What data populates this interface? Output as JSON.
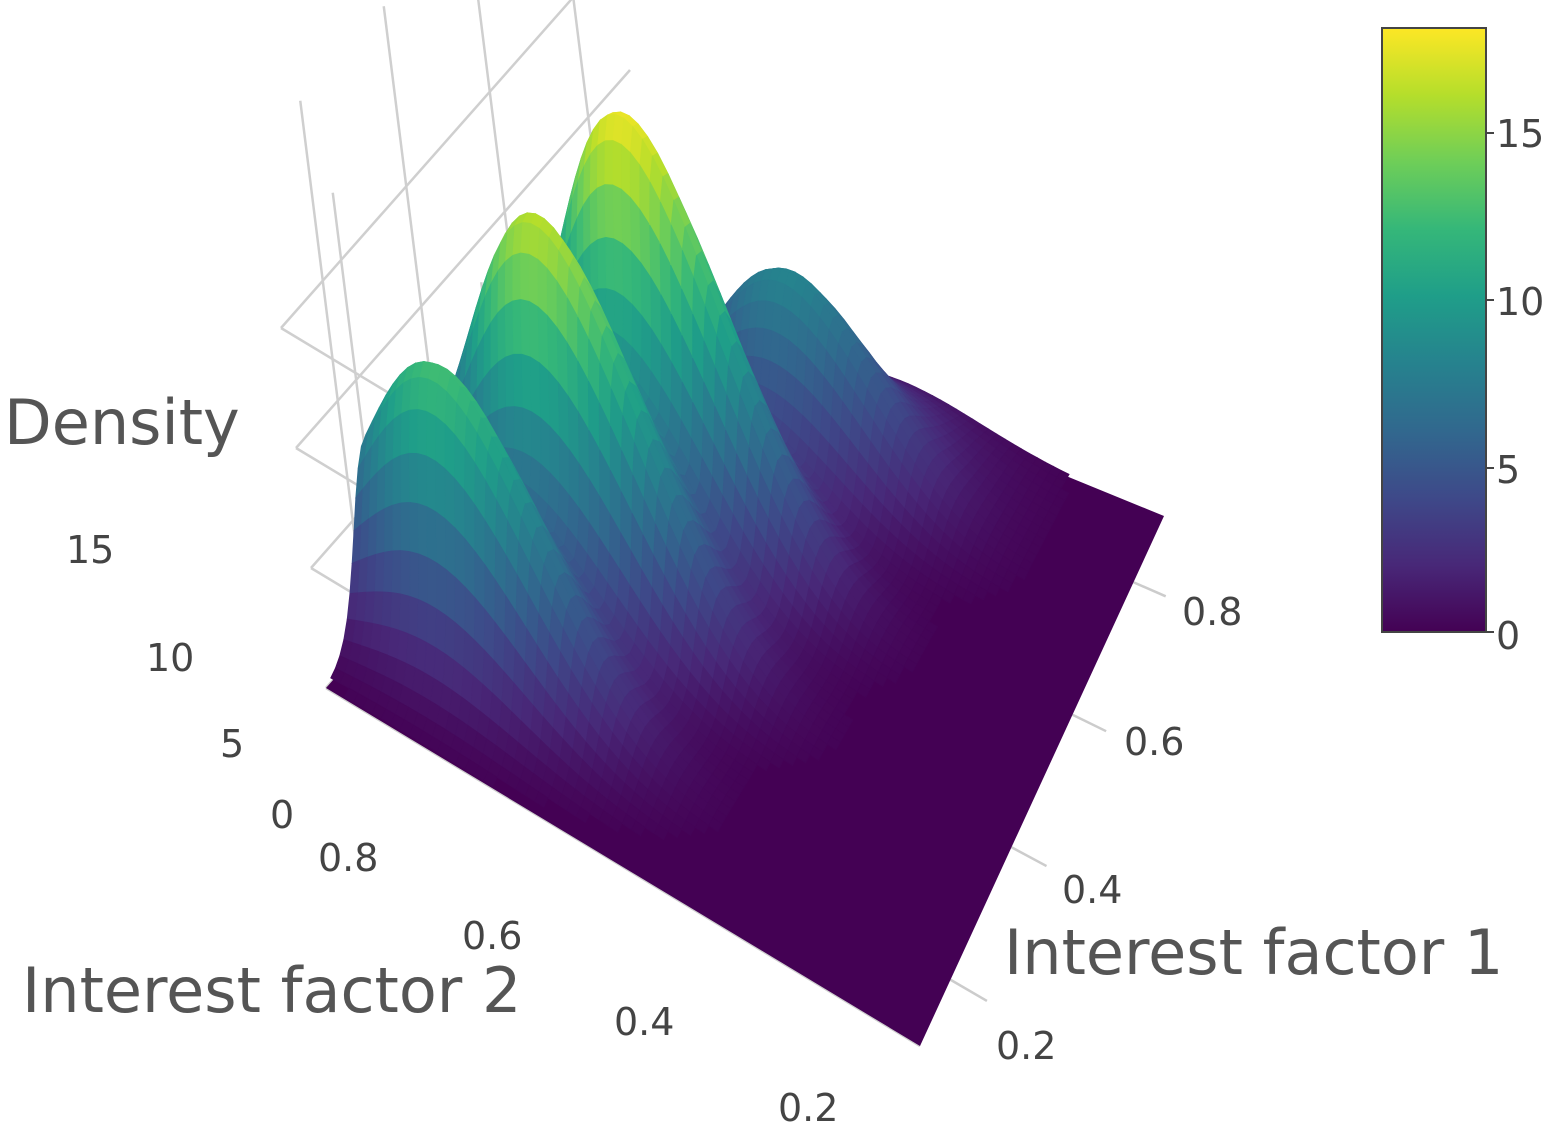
{
  "chart_data": {
    "type": "surface",
    "title": "",
    "zlabel": "Density",
    "xlabel": "Interest factor 1",
    "ylabel": "Interest factor 2",
    "xlim": [
      0.1,
      0.9
    ],
    "ylim": [
      0.1,
      0.9
    ],
    "zlim": [
      0,
      18
    ],
    "x_ticks": [
      "0.2",
      "0.4",
      "0.6",
      "0.8"
    ],
    "y_ticks": [
      "0.2",
      "0.4",
      "0.6",
      "0.8"
    ],
    "z_ticks": [
      "0",
      "5",
      "10",
      "15"
    ],
    "colorscale": "viridis",
    "colorbar": {
      "ticks": [
        "0",
        "5",
        "10",
        "15"
      ],
      "range": [
        0,
        18
      ]
    },
    "peaks": [
      {
        "x": 0.25,
        "y": 0.78,
        "density": 12.5
      },
      {
        "x": 0.42,
        "y": 0.72,
        "density": 16
      },
      {
        "x": 0.58,
        "y": 0.68,
        "density": 17.5
      },
      {
        "x": 0.76,
        "y": 0.58,
        "density": 8
      },
      {
        "x": 0.86,
        "y": 0.5,
        "density": 1.5
      }
    ],
    "grid": true
  }
}
